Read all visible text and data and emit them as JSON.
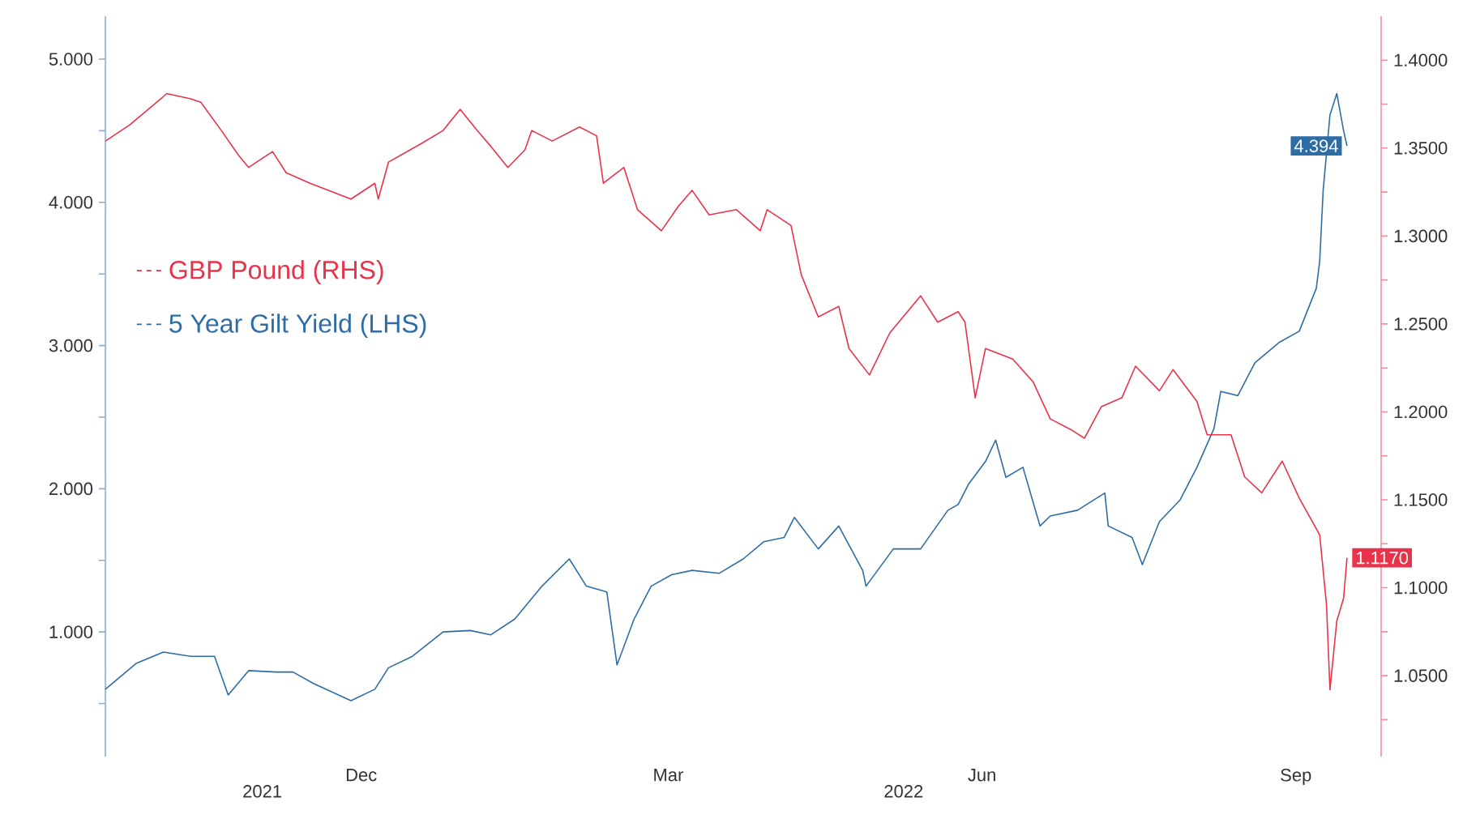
{
  "chart_data": {
    "type": "line",
    "xlim": [
      "2021-10-01",
      "2022-10-10"
    ],
    "xticks": [
      {
        "value": "2021-12-15",
        "label": "Dec"
      },
      {
        "value": "2022-03-15",
        "label": "Mar"
      },
      {
        "value": "2022-06-15",
        "label": "Jun"
      },
      {
        "value": "2022-09-15",
        "label": "Sep"
      }
    ],
    "x2lim": [
      "2021-10-01",
      "2022-10-10"
    ],
    "x2ticks": [
      {
        "value": "2021-11-16",
        "label": "2021"
      },
      {
        "value": "2022-05-23",
        "label": "2022"
      }
    ],
    "ylim": [
      0.13,
      5.3
    ],
    "yticks": [
      {
        "value": 0.5,
        "label": null
      },
      {
        "value": 1,
        "label": "1.000"
      },
      {
        "value": 1.5,
        "label": null
      },
      {
        "value": 2,
        "label": "2.000"
      },
      {
        "value": 2.5,
        "label": null
      },
      {
        "value": 3,
        "label": "3.000"
      },
      {
        "value": 3.5,
        "label": null
      },
      {
        "value": 4,
        "label": "4.000"
      },
      {
        "value": 4.5,
        "label": null
      },
      {
        "value": 5,
        "label": "5.000"
      }
    ],
    "y2lim": [
      1.004,
      1.425
    ],
    "y2ticks": [
      {
        "value": 1.025,
        "label": null
      },
      {
        "value": 1.05,
        "label": "1.0500"
      },
      {
        "value": 1.075,
        "label": null
      },
      {
        "value": 1.1,
        "label": "1.1000"
      },
      {
        "value": 1.125,
        "label": null
      },
      {
        "value": 1.15,
        "label": "1.1500"
      },
      {
        "value": 1.175,
        "label": null
      },
      {
        "value": 1.2,
        "label": "1.2000"
      },
      {
        "value": 1.225,
        "label": null
      },
      {
        "value": 1.25,
        "label": "1.2500"
      },
      {
        "value": 1.275,
        "label": null
      },
      {
        "value": 1.3,
        "label": "1.3000"
      },
      {
        "value": 1.325,
        "label": null
      },
      {
        "value": 1.35,
        "label": "1.3500"
      },
      {
        "value": 1.375,
        "label": null
      },
      {
        "value": 1.4,
        "label": "1.4000"
      }
    ],
    "legend": "left",
    "marker": "none",
    "line_style": "solid",
    "series": [
      {
        "name": "GBP Pound (RHS)",
        "color": "#e8334a",
        "axis": "y2",
        "x": [
          "2021-10-01",
          "2021-10-08",
          "2021-10-16",
          "2021-10-19",
          "2021-10-26",
          "2021-10-29",
          "2021-11-04",
          "2021-11-09",
          "2021-11-12",
          "2021-11-19",
          "2021-11-23",
          "2021-11-30",
          "2021-12-08",
          "2021-12-12",
          "2021-12-19",
          "2021-12-20",
          "2021-12-23",
          "2022-01-02",
          "2022-01-08",
          "2022-01-13",
          "2022-01-18",
          "2022-01-22",
          "2022-01-27",
          "2022-02-01",
          "2022-02-03",
          "2022-02-09",
          "2022-02-17",
          "2022-02-22",
          "2022-02-24",
          "2022-03-02",
          "2022-03-06",
          "2022-03-13",
          "2022-03-18",
          "2022-03-22",
          "2022-03-27",
          "2022-04-04",
          "2022-04-11",
          "2022-04-13",
          "2022-04-20",
          "2022-04-23",
          "2022-04-28",
          "2022-05-04",
          "2022-05-07",
          "2022-05-13",
          "2022-05-19",
          "2022-05-28",
          "2022-06-02",
          "2022-06-08",
          "2022-06-10",
          "2022-06-13",
          "2022-06-16",
          "2022-06-24",
          "2022-06-30",
          "2022-07-05",
          "2022-07-11",
          "2022-07-15",
          "2022-07-20",
          "2022-07-26",
          "2022-07-30",
          "2022-08-06",
          "2022-08-10",
          "2022-08-17",
          "2022-08-20",
          "2022-08-27",
          "2022-08-31",
          "2022-09-05",
          "2022-09-11",
          "2022-09-16",
          "2022-09-22",
          "2022-09-24",
          "2022-09-25",
          "2022-09-27",
          "2022-09-29",
          "2022-09-30"
        ],
        "values": [
          1.354,
          1.363,
          1.376,
          1.381,
          1.378,
          1.376,
          1.36,
          1.346,
          1.339,
          1.348,
          1.336,
          1.33,
          1.324,
          1.321,
          1.33,
          1.321,
          1.342,
          1.353,
          1.36,
          1.372,
          1.36,
          1.351,
          1.339,
          1.349,
          1.36,
          1.354,
          1.362,
          1.357,
          1.33,
          1.339,
          1.315,
          1.303,
          1.317,
          1.326,
          1.312,
          1.315,
          1.303,
          1.315,
          1.306,
          1.278,
          1.254,
          1.26,
          1.236,
          1.221,
          1.245,
          1.266,
          1.251,
          1.257,
          1.251,
          1.208,
          1.236,
          1.23,
          1.217,
          1.196,
          1.19,
          1.185,
          1.203,
          1.208,
          1.226,
          1.212,
          1.224,
          1.206,
          1.187,
          1.187,
          1.163,
          1.154,
          1.172,
          1.151,
          1.13,
          1.09,
          1.042,
          1.081,
          1.094,
          1.117
        ],
        "value_labels": [
          null,
          null,
          null,
          null,
          null,
          null,
          null,
          null,
          null,
          null,
          null,
          null,
          null,
          null,
          null,
          null,
          null,
          null,
          null,
          null,
          null,
          null,
          null,
          null,
          null,
          null,
          null,
          null,
          null,
          null,
          null,
          null,
          null,
          null,
          null,
          null,
          null,
          null,
          null,
          null,
          null,
          null,
          null,
          null,
          null,
          null,
          null,
          null,
          null,
          null,
          null,
          null,
          null,
          null,
          null,
          null,
          null,
          null,
          null,
          null,
          null,
          null,
          null,
          null,
          null,
          null,
          null,
          null,
          null,
          null,
          null,
          null,
          null,
          "1.1170"
        ]
      },
      {
        "name": "5 Year Gilt Yield (LHS)",
        "color": "#2e6da4",
        "axis": "y",
        "x": [
          "2021-10-01",
          "2021-10-10",
          "2021-10-18",
          "2021-10-26",
          "2021-11-02",
          "2021-11-06",
          "2021-11-12",
          "2021-11-20",
          "2021-11-25",
          "2021-12-01",
          "2021-12-12",
          "2021-12-19",
          "2021-12-23",
          "2021-12-30",
          "2022-01-08",
          "2022-01-16",
          "2022-01-22",
          "2022-01-29",
          "2022-02-06",
          "2022-02-14",
          "2022-02-19",
          "2022-02-25",
          "2022-02-28",
          "2022-03-05",
          "2022-03-10",
          "2022-03-16",
          "2022-03-22",
          "2022-03-30",
          "2022-04-06",
          "2022-04-12",
          "2022-04-18",
          "2022-04-21",
          "2022-04-28",
          "2022-05-04",
          "2022-05-11",
          "2022-05-12",
          "2022-05-20",
          "2022-05-28",
          "2022-06-05",
          "2022-06-08",
          "2022-06-11",
          "2022-06-16",
          "2022-06-19",
          "2022-06-22",
          "2022-06-27",
          "2022-07-02",
          "2022-07-05",
          "2022-07-13",
          "2022-07-21",
          "2022-07-22",
          "2022-07-29",
          "2022-08-01",
          "2022-08-06",
          "2022-08-12",
          "2022-08-17",
          "2022-08-22",
          "2022-08-24",
          "2022-08-29",
          "2022-09-03",
          "2022-09-10",
          "2022-09-16",
          "2022-09-21",
          "2022-09-22",
          "2022-09-23",
          "2022-09-25",
          "2022-09-27",
          "2022-09-29",
          "2022-09-30"
        ],
        "values": [
          0.6,
          0.78,
          0.86,
          0.83,
          0.83,
          0.56,
          0.73,
          0.72,
          0.72,
          0.64,
          0.52,
          0.6,
          0.75,
          0.83,
          1.0,
          1.01,
          0.98,
          1.09,
          1.32,
          1.51,
          1.32,
          1.28,
          0.77,
          1.09,
          1.32,
          1.4,
          1.43,
          1.41,
          1.51,
          1.63,
          1.66,
          1.8,
          1.58,
          1.74,
          1.43,
          1.32,
          1.58,
          1.58,
          1.85,
          1.89,
          2.03,
          2.19,
          2.34,
          2.08,
          2.15,
          1.74,
          1.81,
          1.85,
          1.97,
          1.74,
          1.66,
          1.47,
          1.77,
          1.92,
          2.15,
          2.42,
          2.68,
          2.65,
          2.88,
          3.02,
          3.1,
          3.4,
          3.59,
          4.08,
          4.61,
          4.76,
          4.5,
          4.394
        ],
        "value_labels": [
          null,
          null,
          null,
          null,
          null,
          null,
          null,
          null,
          null,
          null,
          null,
          null,
          null,
          null,
          null,
          null,
          null,
          null,
          null,
          null,
          null,
          null,
          null,
          null,
          null,
          null,
          null,
          null,
          null,
          null,
          null,
          null,
          null,
          null,
          null,
          null,
          null,
          null,
          null,
          null,
          null,
          null,
          null,
          null,
          null,
          null,
          null,
          null,
          null,
          null,
          null,
          null,
          null,
          null,
          null,
          null,
          null,
          null,
          null,
          null,
          null,
          null,
          null,
          null,
          null,
          null,
          null,
          "4.394"
        ]
      }
    ]
  }
}
